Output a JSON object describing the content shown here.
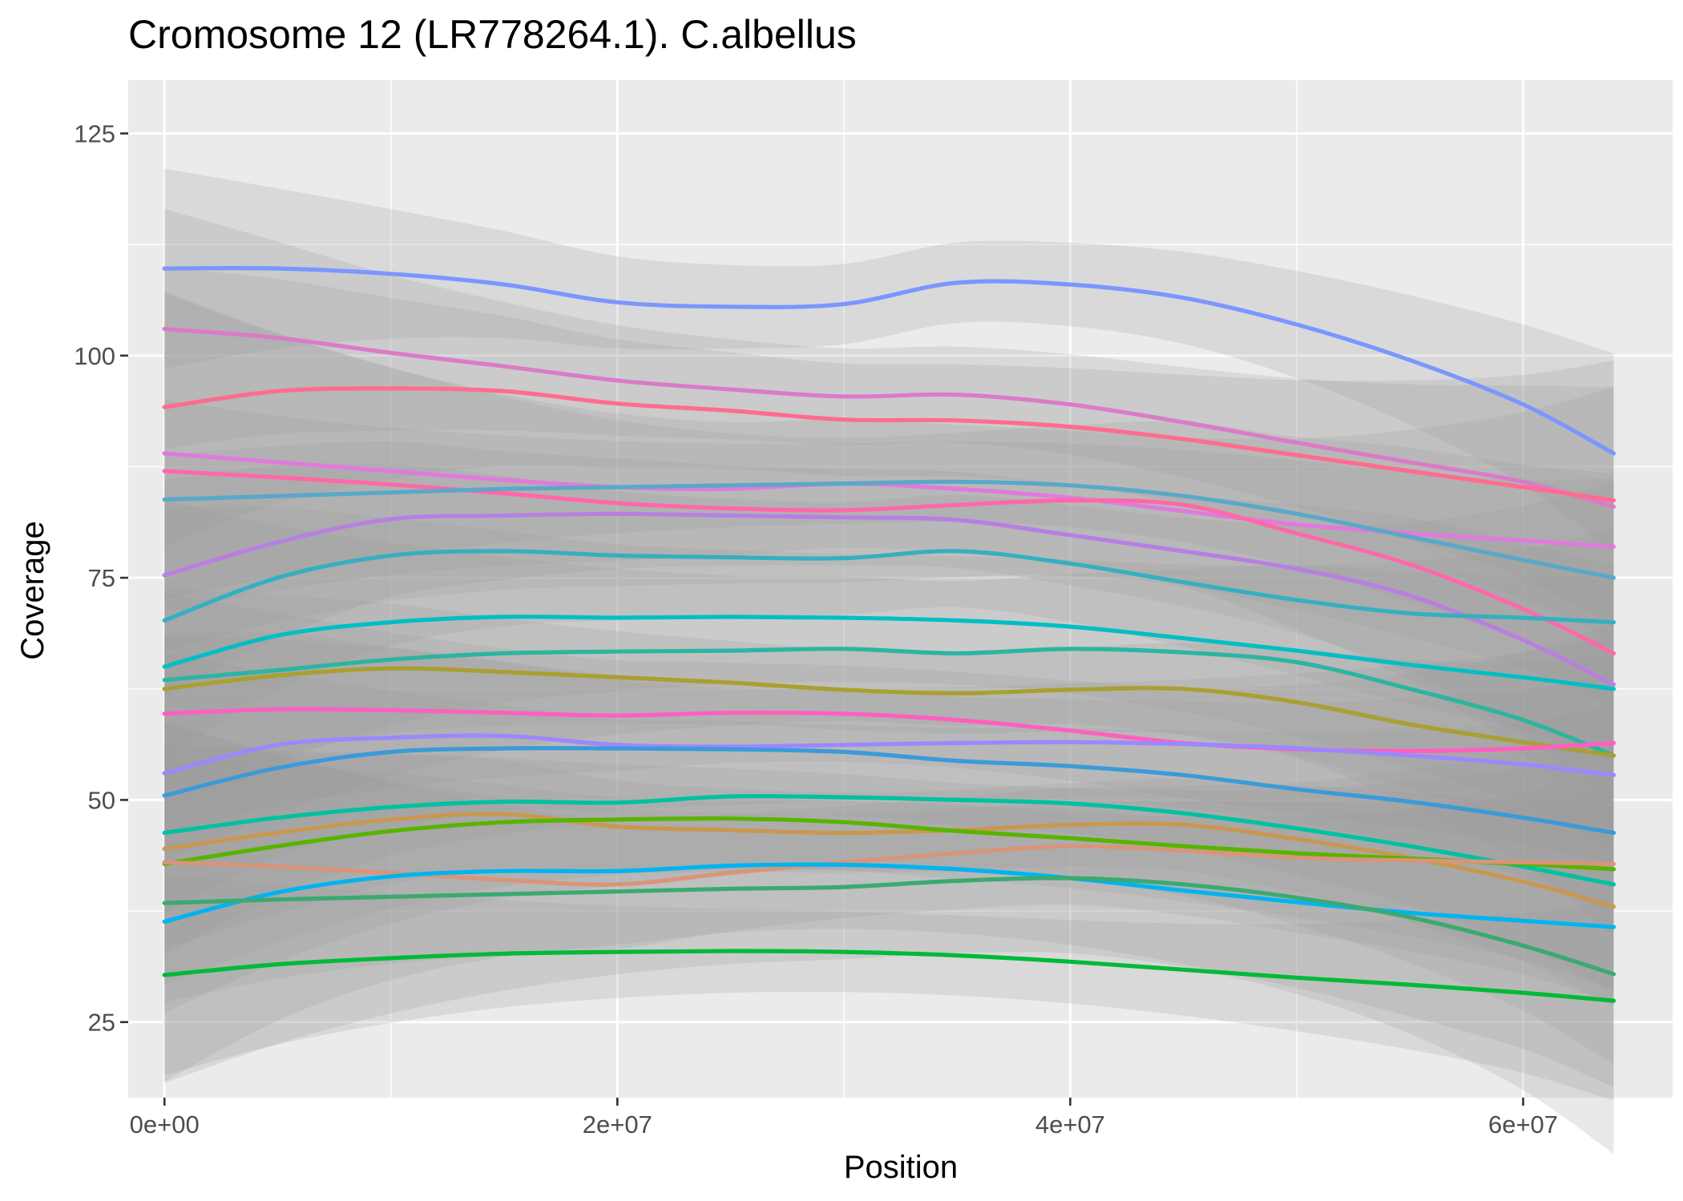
{
  "chart_data": {
    "type": "line",
    "title": "Cromosome 12 (LR778264.1). C.albellus",
    "xlabel": "Position",
    "ylabel": "Coverage",
    "xlim": [
      -1600000,
      66600000
    ],
    "ylim": [
      16.5,
      131
    ],
    "x_ticks": [
      0,
      20000000,
      40000000,
      60000000
    ],
    "x_tick_labels": [
      "0e+00",
      "2e+07",
      "4e+07",
      "6e+07"
    ],
    "y_ticks": [
      25,
      50,
      75,
      100,
      125
    ],
    "y_tick_labels": [
      "25",
      "50",
      "75",
      "100",
      "125"
    ],
    "grid": true,
    "legend": "none",
    "x": [
      0,
      5000000,
      10000000,
      15000000,
      20000000,
      25000000,
      30000000,
      35000000,
      40000000,
      45000000,
      50000000,
      55000000,
      60000000,
      64000000
    ],
    "series": [
      {
        "color": "#7b96ff",
        "values": [
          109.8,
          109.8,
          109.2,
          108.0,
          106.0,
          105.5,
          105.8,
          108.2,
          108.0,
          106.5,
          103.5,
          99.5,
          94.5,
          89.0
        ]
      },
      {
        "color": "#d97cc8",
        "values": [
          103.0,
          102.0,
          100.3,
          98.8,
          97.2,
          96.2,
          95.4,
          95.6,
          94.5,
          92.5,
          90.2,
          88.0,
          85.8,
          83.0
        ]
      },
      {
        "color": "#ff6c90",
        "values": [
          94.2,
          96.0,
          96.3,
          96.0,
          94.6,
          93.8,
          92.8,
          92.7,
          92.0,
          90.6,
          88.8,
          87.0,
          85.2,
          83.7
        ]
      },
      {
        "color": "#e07adc",
        "values": [
          89.0,
          88.0,
          87.0,
          86.0,
          85.2,
          85.0,
          85.6,
          85.0,
          84.0,
          82.5,
          81.0,
          80.0,
          79.2,
          78.5
        ]
      },
      {
        "color": "#ff68a8",
        "values": [
          87.0,
          86.3,
          85.5,
          84.5,
          83.4,
          82.8,
          82.6,
          83.2,
          83.7,
          83.2,
          80.0,
          76.5,
          71.5,
          66.5
        ]
      },
      {
        "color": "#5aa8c8",
        "values": [
          83.8,
          84.2,
          84.6,
          85.0,
          85.2,
          85.4,
          85.6,
          85.8,
          85.4,
          84.2,
          82.2,
          79.6,
          77.0,
          75.0
        ]
      },
      {
        "color": "#b87fe0",
        "values": [
          75.3,
          79.0,
          81.6,
          82.0,
          82.2,
          82.0,
          81.8,
          81.5,
          79.8,
          78.0,
          76.0,
          73.0,
          68.0,
          63.0
        ]
      },
      {
        "color": "#34b0c0",
        "values": [
          70.2,
          75.0,
          77.5,
          78.0,
          77.5,
          77.3,
          77.2,
          78.0,
          76.6,
          74.5,
          72.5,
          71.0,
          70.5,
          70.0
        ]
      },
      {
        "color": "#00bfc4",
        "values": [
          65.0,
          68.5,
          70.0,
          70.6,
          70.5,
          70.6,
          70.5,
          70.2,
          69.5,
          68.2,
          66.8,
          65.2,
          63.8,
          62.5
        ]
      },
      {
        "color": "#2cb5a0",
        "values": [
          63.5,
          64.6,
          65.8,
          66.5,
          66.7,
          66.8,
          67.0,
          66.5,
          67.0,
          66.6,
          65.5,
          62.5,
          59.0,
          55.0
        ]
      },
      {
        "color": "#a8a030",
        "values": [
          62.5,
          64.0,
          64.8,
          64.4,
          63.8,
          63.2,
          62.4,
          62.0,
          62.4,
          62.5,
          61.0,
          58.5,
          56.5,
          55.0
        ]
      },
      {
        "color": "#ff5fc0",
        "values": [
          59.7,
          60.2,
          60.1,
          59.8,
          59.5,
          59.8,
          59.7,
          59.0,
          57.8,
          56.4,
          55.7,
          55.5,
          55.8,
          56.4
        ]
      },
      {
        "color": "#9b88ff",
        "values": [
          53.0,
          56.2,
          57.0,
          57.2,
          56.2,
          56.0,
          56.2,
          56.4,
          56.5,
          56.3,
          55.8,
          55.0,
          54.0,
          52.8
        ]
      },
      {
        "color": "#3a9bd8",
        "values": [
          50.5,
          53.6,
          55.4,
          55.8,
          55.8,
          55.7,
          55.4,
          54.4,
          53.8,
          52.8,
          51.2,
          49.8,
          48.0,
          46.3
        ]
      },
      {
        "color": "#00c1a0",
        "values": [
          46.3,
          48.0,
          49.2,
          49.8,
          49.7,
          50.4,
          50.3,
          50.0,
          49.6,
          48.5,
          46.8,
          44.8,
          42.5,
          40.5
        ]
      },
      {
        "color": "#c89850",
        "values": [
          44.5,
          46.3,
          47.8,
          48.4,
          47.0,
          46.6,
          46.3,
          46.6,
          47.2,
          47.2,
          45.6,
          43.5,
          40.8,
          38.0
        ]
      },
      {
        "color": "#58b400",
        "values": [
          42.8,
          44.8,
          46.5,
          47.5,
          47.8,
          47.9,
          47.5,
          46.5,
          45.7,
          44.8,
          44.0,
          43.4,
          42.8,
          42.2
        ]
      },
      {
        "color": "#d8957a",
        "values": [
          43.0,
          42.5,
          41.8,
          41.0,
          40.5,
          41.8,
          43.0,
          44.0,
          44.8,
          44.3,
          43.5,
          43.2,
          43.0,
          42.8
        ]
      },
      {
        "color": "#00b4f0",
        "values": [
          36.3,
          39.6,
          41.4,
          42.0,
          42.0,
          42.6,
          42.7,
          42.2,
          41.2,
          39.8,
          38.5,
          37.3,
          36.4,
          35.7
        ]
      },
      {
        "color": "#3aaa70",
        "values": [
          38.4,
          38.8,
          39.1,
          39.4,
          39.7,
          40.0,
          40.2,
          40.9,
          41.2,
          40.5,
          39.0,
          36.8,
          33.6,
          30.4
        ]
      },
      {
        "color": "#00ba38",
        "values": [
          30.3,
          31.5,
          32.2,
          32.7,
          32.9,
          33.0,
          32.9,
          32.5,
          31.8,
          30.9,
          30.0,
          29.2,
          28.3,
          27.4
        ]
      }
    ]
  }
}
